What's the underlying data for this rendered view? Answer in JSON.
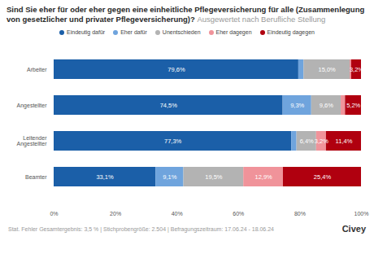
{
  "chart_data": {
    "type": "bar",
    "orientation": "horizontal",
    "stacked": true,
    "data_labels": true,
    "grid": false,
    "legend": "top",
    "title": "Sind Sie eher für oder eher gegen eine einheitliche Pflegeversicherung für alle (Zusammenlegung von gesetzlicher und privater Pflegeversicherung)?",
    "subtitle": "Ausgewertet nach Berufliche Stellung",
    "caption": "Stat. Fehler Gesamtergebnis: 3,5 % | Stichprobengröße: 2.504 | Befragungszeitraum: 17.06.24 - 18.06.24",
    "source": "Civey",
    "categories": [
      "Arbeiter",
      "Angestellter",
      "Leitender Angestellter",
      "Beamter"
    ],
    "series": [
      {
        "name": "Eindeutig dafür",
        "color": "#1b5fa8",
        "values": [
          79.6,
          74.5,
          77.3,
          33.1
        ],
        "value_labels": [
          "79,6%",
          "74,5%",
          "77,3%",
          "33,1%"
        ]
      },
      {
        "name": "Eher dafür",
        "color": "#6fa4dd",
        "values": [
          1.7,
          9.3,
          1.7,
          9.1
        ],
        "value_labels": [
          null,
          "9,3%",
          null,
          "9,1%"
        ]
      },
      {
        "name": "Unentschieden",
        "color": "#b3b3b3",
        "values": [
          15.0,
          9.6,
          6.4,
          19.5
        ],
        "value_labels": [
          "15,0%",
          "9,6%",
          "6,4%",
          "19,5%"
        ]
      },
      {
        "name": "Eher dagegen",
        "color": "#f0939a",
        "values": [
          0.5,
          1.4,
          3.2,
          12.9
        ],
        "value_labels": [
          null,
          null,
          "3,2%",
          "12,9%"
        ]
      },
      {
        "name": "Eindeutig dagegen",
        "color": "#b0000f",
        "values": [
          3.2,
          5.2,
          11.4,
          25.4
        ],
        "value_labels": [
          "3,2%",
          "5,2%",
          "11,4%",
          "25,4%"
        ]
      }
    ],
    "xlim": [
      0,
      100
    ],
    "xticks": [
      {
        "value": 0,
        "label": "0%"
      },
      {
        "value": 20,
        "label": "20%"
      },
      {
        "value": 40,
        "label": "40%"
      },
      {
        "value": 60,
        "label": "60%"
      },
      {
        "value": 80,
        "label": "80%"
      },
      {
        "value": 100,
        "label": "100%"
      }
    ]
  }
}
